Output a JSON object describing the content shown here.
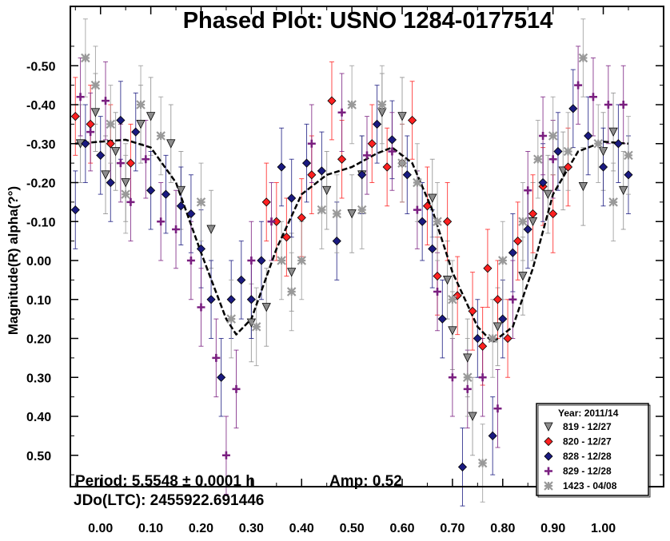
{
  "chart_data": {
    "type": "scatter",
    "title": "Phased Plot: USNO 1284-0177514",
    "xlabel": "",
    "ylabel": "Magnitude(R) alpha(?°)",
    "xlim": [
      -0.06,
      1.12
    ],
    "ylim": [
      -0.6,
      0.6
    ],
    "y_inverted": true,
    "x_ticks": [
      0.0,
      0.1,
      0.2,
      0.3,
      0.4,
      0.5,
      0.6,
      0.7,
      0.8,
      0.9,
      1.0
    ],
    "x_tick_labels": [
      "0.00",
      "0.10",
      "0.20",
      "0.30",
      "0.40",
      "0.50",
      "0.60",
      "0.70",
      "0.80",
      "0.90",
      "1.00"
    ],
    "y_ticks": [
      -0.5,
      -0.4,
      -0.3,
      -0.2,
      -0.1,
      0.0,
      0.1,
      0.2,
      0.3,
      0.4,
      0.5
    ],
    "y_tick_labels": [
      "-0.50",
      "-0.40",
      "-0.30",
      "-0.20",
      "-0.10",
      "0.00",
      "0.10",
      "0.20",
      "0.30",
      "0.40",
      "0.50"
    ],
    "grid": false,
    "legend_position": "bottom-right",
    "legend_title": "Year: 2011/14",
    "annotations": {
      "period": "Period: 5.5548 ± 0.0001 h",
      "amp": "Amp: 0.52",
      "jdo": "JDo(LTC): 2455922.691446"
    },
    "fit_curve": {
      "name": "Fourier fit",
      "color": "#000000",
      "x": [
        -0.05,
        0.0,
        0.05,
        0.1,
        0.15,
        0.2,
        0.25,
        0.27,
        0.3,
        0.35,
        0.4,
        0.45,
        0.5,
        0.55,
        0.58,
        0.62,
        0.66,
        0.7,
        0.75,
        0.78,
        0.82,
        0.86,
        0.9,
        0.95,
        1.0,
        1.05
      ],
      "y": [
        -0.3,
        -0.305,
        -0.31,
        -0.29,
        -0.2,
        -0.02,
        0.15,
        0.19,
        0.15,
        -0.03,
        -0.17,
        -0.22,
        -0.24,
        -0.275,
        -0.29,
        -0.25,
        -0.13,
        0.03,
        0.17,
        0.21,
        0.17,
        0.02,
        -0.17,
        -0.28,
        -0.305,
        -0.3
      ]
    },
    "series": [
      {
        "name": "819 - 12/27",
        "marker": "triangle-down",
        "color": "#8c8c8c",
        "points": [
          [
            -0.04,
            -0.3
          ],
          [
            -0.01,
            -0.38
          ],
          [
            0.01,
            -0.22
          ],
          [
            0.03,
            -0.28
          ],
          [
            0.05,
            -0.2
          ],
          [
            0.08,
            -0.35
          ],
          [
            0.1,
            -0.37
          ],
          [
            0.14,
            -0.3
          ],
          [
            0.16,
            -0.18
          ],
          [
            0.22,
            -0.08
          ],
          [
            0.3,
            0.16
          ],
          [
            0.33,
            0.12
          ],
          [
            0.38,
            0.03
          ],
          [
            0.45,
            -0.18
          ],
          [
            0.5,
            -0.12
          ],
          [
            0.52,
            -0.22
          ],
          [
            0.56,
            -0.38
          ],
          [
            0.6,
            -0.37
          ],
          [
            0.66,
            -0.16
          ],
          [
            0.69,
            0.05
          ],
          [
            0.7,
            0.18
          ],
          [
            0.73,
            0.25
          ],
          [
            0.74,
            0.4
          ],
          [
            0.79,
            0.17
          ],
          [
            0.84,
            0.04
          ],
          [
            0.86,
            -0.1
          ],
          [
            0.89,
            -0.17
          ],
          [
            0.92,
            -0.23
          ],
          [
            0.96,
            -0.19
          ],
          [
            1.0,
            -0.28
          ],
          [
            1.02,
            -0.33
          ],
          [
            1.04,
            -0.18
          ]
        ]
      },
      {
        "name": "820 - 12/27",
        "marker": "diamond",
        "color": "#ff2020",
        "points": [
          [
            -0.05,
            -0.37
          ],
          [
            -0.02,
            -0.35
          ],
          [
            0.02,
            -0.3
          ],
          [
            0.06,
            -0.25
          ],
          [
            0.33,
            -0.15
          ],
          [
            0.35,
            -0.1
          ],
          [
            0.37,
            -0.06
          ],
          [
            0.4,
            -0.11
          ],
          [
            0.42,
            -0.22
          ],
          [
            0.46,
            -0.41
          ],
          [
            0.48,
            -0.26
          ],
          [
            0.54,
            -0.3
          ],
          [
            0.57,
            -0.24
          ],
          [
            0.6,
            -0.25
          ],
          [
            0.62,
            -0.36
          ],
          [
            0.65,
            -0.14
          ],
          [
            0.67,
            0.04
          ],
          [
            0.69,
            -0.1
          ],
          [
            0.71,
            0.09
          ],
          [
            0.74,
            0.13
          ],
          [
            0.76,
            0.22
          ],
          [
            0.77,
            0.02
          ],
          [
            0.79,
            0.1
          ],
          [
            0.81,
            0.2
          ],
          [
            0.83,
            -0.05
          ],
          [
            0.86,
            -0.12
          ],
          [
            0.88,
            -0.19
          ],
          [
            0.9,
            -0.12
          ],
          [
            0.93,
            -0.24
          ]
        ]
      },
      {
        "name": "828 - 12/28",
        "marker": "diamond",
        "color": "#1a1a80",
        "points": [
          [
            -0.05,
            -0.13
          ],
          [
            -0.03,
            -0.3
          ],
          [
            0.0,
            -0.27
          ],
          [
            0.02,
            -0.2
          ],
          [
            0.04,
            -0.36
          ],
          [
            0.07,
            -0.33
          ],
          [
            0.1,
            -0.18
          ],
          [
            0.13,
            -0.17
          ],
          [
            0.16,
            -0.14
          ],
          [
            0.18,
            -0.12
          ],
          [
            0.2,
            -0.03
          ],
          [
            0.22,
            0.1
          ],
          [
            0.24,
            0.3
          ],
          [
            0.26,
            0.1
          ],
          [
            0.28,
            0.05
          ],
          [
            0.3,
            0.1
          ],
          [
            0.32,
            0.0
          ],
          [
            0.36,
            -0.24
          ],
          [
            0.38,
            -0.16
          ],
          [
            0.41,
            -0.25
          ],
          [
            0.44,
            -0.23
          ],
          [
            0.47,
            -0.05
          ],
          [
            0.52,
            -0.22
          ],
          [
            0.55,
            -0.35
          ],
          [
            0.58,
            -0.31
          ],
          [
            0.61,
            -0.22
          ],
          [
            0.64,
            -0.1
          ],
          [
            0.66,
            -0.03
          ],
          [
            0.68,
            0.15
          ],
          [
            0.72,
            0.53
          ],
          [
            0.75,
            0.2
          ],
          [
            0.78,
            0.45
          ],
          [
            0.8,
            0.15
          ],
          [
            0.82,
            -0.02
          ],
          [
            0.85,
            -0.08
          ],
          [
            0.88,
            -0.2
          ],
          [
            0.91,
            -0.28
          ],
          [
            0.94,
            -0.39
          ],
          [
            0.97,
            -0.32
          ],
          [
            1.0,
            -0.24
          ],
          [
            1.03,
            -0.3
          ],
          [
            1.05,
            -0.22
          ]
        ]
      },
      {
        "name": "829 - 12/28",
        "marker": "plus",
        "color": "#7a1f80",
        "points": [
          [
            -0.04,
            -0.42
          ],
          [
            -0.02,
            -0.33
          ],
          [
            0.01,
            -0.41
          ],
          [
            0.04,
            -0.25
          ],
          [
            0.06,
            -0.15
          ],
          [
            0.09,
            -0.26
          ],
          [
            0.12,
            -0.1
          ],
          [
            0.15,
            -0.08
          ],
          [
            0.18,
            0.0
          ],
          [
            0.2,
            0.12
          ],
          [
            0.23,
            0.25
          ],
          [
            0.25,
            0.5
          ],
          [
            0.27,
            0.33
          ],
          [
            0.3,
            0.0
          ],
          [
            0.34,
            -0.1
          ],
          [
            0.42,
            -0.3
          ],
          [
            0.48,
            -0.38
          ],
          [
            0.53,
            -0.27
          ],
          [
            0.58,
            -0.28
          ],
          [
            0.63,
            -0.13
          ],
          [
            0.67,
            0.08
          ],
          [
            0.7,
            0.3
          ],
          [
            0.73,
            0.33
          ],
          [
            0.76,
            0.3
          ],
          [
            0.79,
            0.38
          ],
          [
            0.82,
            0.1
          ],
          [
            0.85,
            -0.18
          ],
          [
            0.88,
            -0.32
          ],
          [
            0.9,
            -0.26
          ],
          [
            0.95,
            -0.45
          ],
          [
            0.98,
            -0.42
          ],
          [
            1.01,
            -0.4
          ],
          [
            1.04,
            -0.4
          ]
        ]
      },
      {
        "name": "1423 - 04/08",
        "marker": "asterisk",
        "color": "#999999",
        "points": [
          [
            -0.03,
            -0.52
          ],
          [
            -0.01,
            -0.45
          ],
          [
            0.02,
            -0.35
          ],
          [
            0.05,
            -0.17
          ],
          [
            0.08,
            -0.4
          ],
          [
            0.12,
            -0.32
          ],
          [
            0.2,
            -0.15
          ],
          [
            0.26,
            0.15
          ],
          [
            0.31,
            0.17
          ],
          [
            0.36,
            0.0
          ],
          [
            0.38,
            0.08
          ],
          [
            0.4,
            0.0
          ],
          [
            0.44,
            -0.13
          ],
          [
            0.47,
            -0.12
          ],
          [
            0.5,
            -0.4
          ],
          [
            0.52,
            -0.13
          ],
          [
            0.56,
            -0.4
          ],
          [
            0.6,
            -0.25
          ],
          [
            0.63,
            -0.2
          ],
          [
            0.67,
            -0.1
          ],
          [
            0.7,
            0.1
          ],
          [
            0.73,
            0.3
          ],
          [
            0.76,
            0.52
          ],
          [
            0.78,
            0.2
          ],
          [
            0.8,
            0.0
          ],
          [
            0.84,
            -0.1
          ],
          [
            0.87,
            -0.26
          ],
          [
            0.9,
            -0.32
          ],
          [
            0.93,
            -0.28
          ],
          [
            0.96,
            -0.52
          ],
          [
            0.99,
            -0.3
          ],
          [
            1.02,
            -0.15
          ],
          [
            1.05,
            -0.27
          ]
        ]
      }
    ]
  }
}
